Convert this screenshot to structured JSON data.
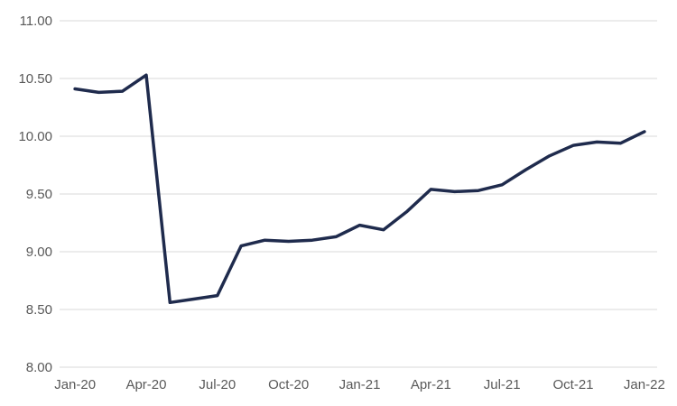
{
  "chart_data": {
    "type": "line",
    "title": "",
    "xlabel": "",
    "ylabel": "",
    "x_categories": [
      "Jan-20",
      "Feb-20",
      "Mar-20",
      "Apr-20",
      "May-20",
      "Jun-20",
      "Jul-20",
      "Aug-20",
      "Sep-20",
      "Oct-20",
      "Nov-20",
      "Dec-20",
      "Jan-21",
      "Feb-21",
      "Mar-21",
      "Apr-21",
      "May-21",
      "Jun-21",
      "Jul-21",
      "Aug-21",
      "Sep-21",
      "Oct-21",
      "Nov-21",
      "Dec-21",
      "Jan-22"
    ],
    "values": [
      10.41,
      10.38,
      10.39,
      10.53,
      8.56,
      8.59,
      8.62,
      9.05,
      9.1,
      9.09,
      9.1,
      9.13,
      9.23,
      9.19,
      9.35,
      9.54,
      9.52,
      9.53,
      9.58,
      9.71,
      9.83,
      9.92,
      9.95,
      9.94,
      10.04
    ],
    "x_tick_labels": [
      "Jan-20",
      "Apr-20",
      "Jul-20",
      "Oct-20",
      "Jan-21",
      "Apr-21",
      "Jul-21",
      "Oct-21",
      "Jan-22"
    ],
    "x_tick_every_n_months": 3,
    "y_tick_labels": [
      "8.00",
      "8.50",
      "9.00",
      "9.50",
      "10.00",
      "10.50",
      "11.00"
    ],
    "ylim": [
      8,
      11
    ],
    "grid": "horizontal",
    "legend": "none",
    "colors": {
      "line": "#1f2b4d",
      "gridline": "#d9d9d9",
      "tick_label": "#595959",
      "background": "#ffffff"
    }
  }
}
